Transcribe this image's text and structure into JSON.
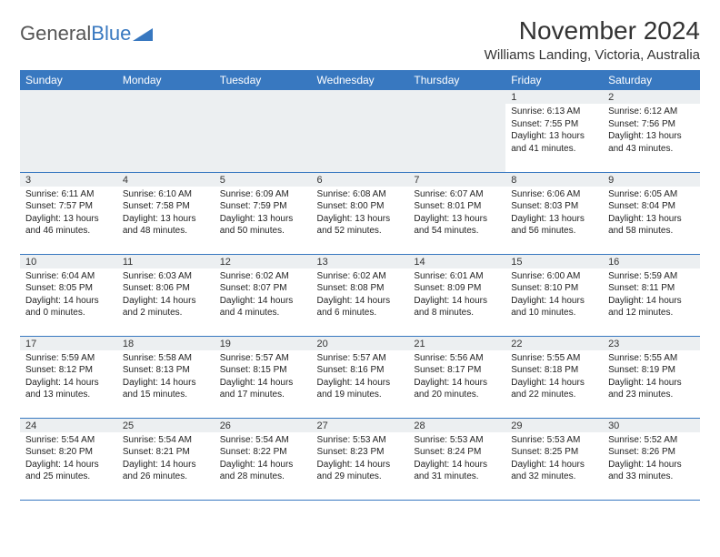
{
  "logo": {
    "text1": "General",
    "text2": "Blue"
  },
  "title": "November 2024",
  "location": "Williams Landing, Victoria, Australia",
  "colors": {
    "header_bg": "#3878c0",
    "header_text": "#ffffff",
    "daynum_bg": "#eceff1",
    "border": "#3878c0",
    "text": "#222222",
    "page_bg": "#ffffff"
  },
  "weekdays": [
    "Sunday",
    "Monday",
    "Tuesday",
    "Wednesday",
    "Thursday",
    "Friday",
    "Saturday"
  ],
  "weeks": [
    [
      {
        "n": "",
        "sr": "",
        "ss": "",
        "dl": ""
      },
      {
        "n": "",
        "sr": "",
        "ss": "",
        "dl": ""
      },
      {
        "n": "",
        "sr": "",
        "ss": "",
        "dl": ""
      },
      {
        "n": "",
        "sr": "",
        "ss": "",
        "dl": ""
      },
      {
        "n": "",
        "sr": "",
        "ss": "",
        "dl": ""
      },
      {
        "n": "1",
        "sr": "Sunrise: 6:13 AM",
        "ss": "Sunset: 7:55 PM",
        "dl": "Daylight: 13 hours and 41 minutes."
      },
      {
        "n": "2",
        "sr": "Sunrise: 6:12 AM",
        "ss": "Sunset: 7:56 PM",
        "dl": "Daylight: 13 hours and 43 minutes."
      }
    ],
    [
      {
        "n": "3",
        "sr": "Sunrise: 6:11 AM",
        "ss": "Sunset: 7:57 PM",
        "dl": "Daylight: 13 hours and 46 minutes."
      },
      {
        "n": "4",
        "sr": "Sunrise: 6:10 AM",
        "ss": "Sunset: 7:58 PM",
        "dl": "Daylight: 13 hours and 48 minutes."
      },
      {
        "n": "5",
        "sr": "Sunrise: 6:09 AM",
        "ss": "Sunset: 7:59 PM",
        "dl": "Daylight: 13 hours and 50 minutes."
      },
      {
        "n": "6",
        "sr": "Sunrise: 6:08 AM",
        "ss": "Sunset: 8:00 PM",
        "dl": "Daylight: 13 hours and 52 minutes."
      },
      {
        "n": "7",
        "sr": "Sunrise: 6:07 AM",
        "ss": "Sunset: 8:01 PM",
        "dl": "Daylight: 13 hours and 54 minutes."
      },
      {
        "n": "8",
        "sr": "Sunrise: 6:06 AM",
        "ss": "Sunset: 8:03 PM",
        "dl": "Daylight: 13 hours and 56 minutes."
      },
      {
        "n": "9",
        "sr": "Sunrise: 6:05 AM",
        "ss": "Sunset: 8:04 PM",
        "dl": "Daylight: 13 hours and 58 minutes."
      }
    ],
    [
      {
        "n": "10",
        "sr": "Sunrise: 6:04 AM",
        "ss": "Sunset: 8:05 PM",
        "dl": "Daylight: 14 hours and 0 minutes."
      },
      {
        "n": "11",
        "sr": "Sunrise: 6:03 AM",
        "ss": "Sunset: 8:06 PM",
        "dl": "Daylight: 14 hours and 2 minutes."
      },
      {
        "n": "12",
        "sr": "Sunrise: 6:02 AM",
        "ss": "Sunset: 8:07 PM",
        "dl": "Daylight: 14 hours and 4 minutes."
      },
      {
        "n": "13",
        "sr": "Sunrise: 6:02 AM",
        "ss": "Sunset: 8:08 PM",
        "dl": "Daylight: 14 hours and 6 minutes."
      },
      {
        "n": "14",
        "sr": "Sunrise: 6:01 AM",
        "ss": "Sunset: 8:09 PM",
        "dl": "Daylight: 14 hours and 8 minutes."
      },
      {
        "n": "15",
        "sr": "Sunrise: 6:00 AM",
        "ss": "Sunset: 8:10 PM",
        "dl": "Daylight: 14 hours and 10 minutes."
      },
      {
        "n": "16",
        "sr": "Sunrise: 5:59 AM",
        "ss": "Sunset: 8:11 PM",
        "dl": "Daylight: 14 hours and 12 minutes."
      }
    ],
    [
      {
        "n": "17",
        "sr": "Sunrise: 5:59 AM",
        "ss": "Sunset: 8:12 PM",
        "dl": "Daylight: 14 hours and 13 minutes."
      },
      {
        "n": "18",
        "sr": "Sunrise: 5:58 AM",
        "ss": "Sunset: 8:13 PM",
        "dl": "Daylight: 14 hours and 15 minutes."
      },
      {
        "n": "19",
        "sr": "Sunrise: 5:57 AM",
        "ss": "Sunset: 8:15 PM",
        "dl": "Daylight: 14 hours and 17 minutes."
      },
      {
        "n": "20",
        "sr": "Sunrise: 5:57 AM",
        "ss": "Sunset: 8:16 PM",
        "dl": "Daylight: 14 hours and 19 minutes."
      },
      {
        "n": "21",
        "sr": "Sunrise: 5:56 AM",
        "ss": "Sunset: 8:17 PM",
        "dl": "Daylight: 14 hours and 20 minutes."
      },
      {
        "n": "22",
        "sr": "Sunrise: 5:55 AM",
        "ss": "Sunset: 8:18 PM",
        "dl": "Daylight: 14 hours and 22 minutes."
      },
      {
        "n": "23",
        "sr": "Sunrise: 5:55 AM",
        "ss": "Sunset: 8:19 PM",
        "dl": "Daylight: 14 hours and 23 minutes."
      }
    ],
    [
      {
        "n": "24",
        "sr": "Sunrise: 5:54 AM",
        "ss": "Sunset: 8:20 PM",
        "dl": "Daylight: 14 hours and 25 minutes."
      },
      {
        "n": "25",
        "sr": "Sunrise: 5:54 AM",
        "ss": "Sunset: 8:21 PM",
        "dl": "Daylight: 14 hours and 26 minutes."
      },
      {
        "n": "26",
        "sr": "Sunrise: 5:54 AM",
        "ss": "Sunset: 8:22 PM",
        "dl": "Daylight: 14 hours and 28 minutes."
      },
      {
        "n": "27",
        "sr": "Sunrise: 5:53 AM",
        "ss": "Sunset: 8:23 PM",
        "dl": "Daylight: 14 hours and 29 minutes."
      },
      {
        "n": "28",
        "sr": "Sunrise: 5:53 AM",
        "ss": "Sunset: 8:24 PM",
        "dl": "Daylight: 14 hours and 31 minutes."
      },
      {
        "n": "29",
        "sr": "Sunrise: 5:53 AM",
        "ss": "Sunset: 8:25 PM",
        "dl": "Daylight: 14 hours and 32 minutes."
      },
      {
        "n": "30",
        "sr": "Sunrise: 5:52 AM",
        "ss": "Sunset: 8:26 PM",
        "dl": "Daylight: 14 hours and 33 minutes."
      }
    ]
  ]
}
